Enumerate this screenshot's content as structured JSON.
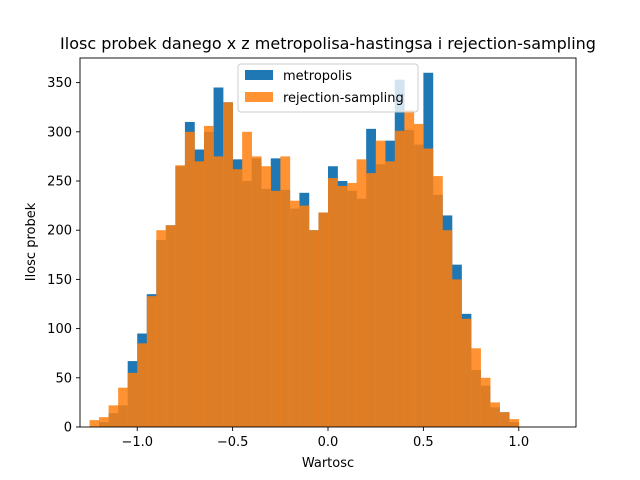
{
  "chart_data": {
    "type": "bar",
    "title": "Ilosc probek danego x z metropolisa-hastingsa i rejection-sampling",
    "xlabel": "Wartosc",
    "ylabel": "Ilosc probek",
    "xlim": [
      -1.3,
      1.3
    ],
    "ylim": [
      0,
      375
    ],
    "xticks": [
      -1.0,
      -0.5,
      0.0,
      0.5,
      1.0
    ],
    "xtick_labels": [
      "−1.0",
      "−0.5",
      "0.0",
      "0.5",
      "1.0"
    ],
    "yticks": [
      0,
      50,
      100,
      150,
      200,
      250,
      300,
      350
    ],
    "ytick_labels": [
      "0",
      "50",
      "100",
      "150",
      "200",
      "250",
      "300",
      "350"
    ],
    "grid": false,
    "legend_position": "top-center",
    "series": [
      {
        "name": "metropolis",
        "color": "#1f77b4",
        "alpha": 1.0,
        "bin_start": -1.2,
        "bin_width": 0.05,
        "values": [
          5,
          14,
          22,
          67,
          95,
          135,
          190,
          205,
          265,
          310,
          282,
          300,
          345,
          330,
          272,
          250,
          273,
          242,
          273,
          241,
          222,
          238,
          200,
          218,
          265,
          250,
          240,
          232,
          303,
          267,
          291,
          353,
          302,
          287,
          360,
          236,
          215,
          165,
          115,
          58,
          42,
          20,
          15,
          5
        ]
      },
      {
        "name": "rejection-sampling",
        "color": "#ff7f0e",
        "alpha": 0.85,
        "bin_start": -1.25,
        "bin_width": 0.05,
        "values": [
          7,
          10,
          22,
          40,
          55,
          85,
          133,
          200,
          205,
          266,
          300,
          270,
          306,
          275,
          330,
          262,
          300,
          275,
          265,
          240,
          275,
          230,
          225,
          200,
          218,
          253,
          245,
          248,
          272,
          258,
          291,
          270,
          301,
          322,
          308,
          283,
          255,
          200,
          150,
          110,
          80,
          50,
          25,
          15,
          8
        ]
      }
    ]
  }
}
